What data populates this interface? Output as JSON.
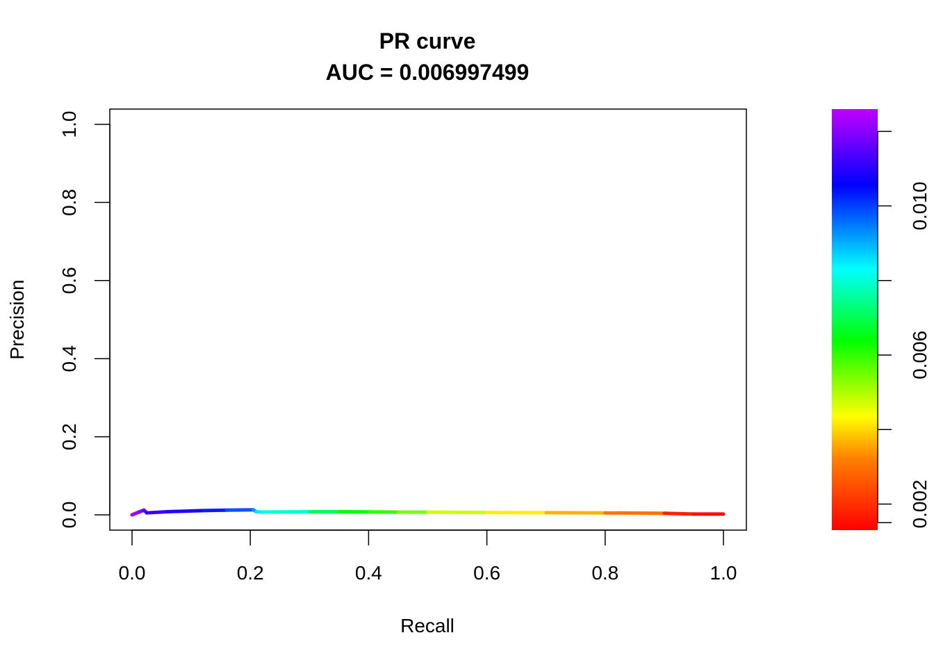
{
  "chart_data": {
    "type": "line",
    "title": "PR curve",
    "subtitle": "AUC = 0.006997499",
    "xlabel": "Recall",
    "ylabel": "Precision",
    "xlim": [
      0,
      1
    ],
    "ylim": [
      0,
      1
    ],
    "xticks": [
      "0.0",
      "0.2",
      "0.4",
      "0.6",
      "0.8",
      "1.0"
    ],
    "yticks": [
      "0.0",
      "0.2",
      "0.4",
      "0.6",
      "0.8",
      "1.0"
    ],
    "grid": false,
    "series": [
      {
        "x": [
          0.0,
          0.01,
          0.02,
          0.025,
          0.06,
          0.12,
          0.16,
          0.205,
          0.21,
          0.22,
          0.3,
          0.35,
          0.4,
          0.45,
          0.5,
          0.6,
          0.7,
          0.8,
          0.9,
          0.95,
          1.0
        ],
        "y": [
          0.0,
          0.006,
          0.012,
          0.005,
          0.008,
          0.011,
          0.012,
          0.013,
          0.008,
          0.007,
          0.008,
          0.008,
          0.0075,
          0.007,
          0.007,
          0.006,
          0.0055,
          0.005,
          0.004,
          0.002,
          0.002
        ],
        "color_values": [
          0.0125,
          0.0122,
          0.0118,
          0.0115,
          0.0113,
          0.0107,
          0.0102,
          0.0096,
          0.0088,
          0.0082,
          0.007,
          0.0063,
          0.0057,
          0.005,
          0.0042,
          0.0036,
          0.003,
          0.0024,
          0.0016,
          0.0014,
          0.0013
        ]
      }
    ],
    "colorbar": {
      "range": [
        0.0013,
        0.0126
      ],
      "ticks": [
        0.0015,
        0.002,
        0.004,
        0.006,
        0.008,
        0.01,
        0.012
      ],
      "tick_labels": [
        "0.002",
        "0.006",
        "0.010"
      ],
      "tick_label_values": [
        0.002,
        0.006,
        0.01
      ],
      "palette": "rainbow (red → yellow → green → cyan → blue → purple)"
    }
  }
}
